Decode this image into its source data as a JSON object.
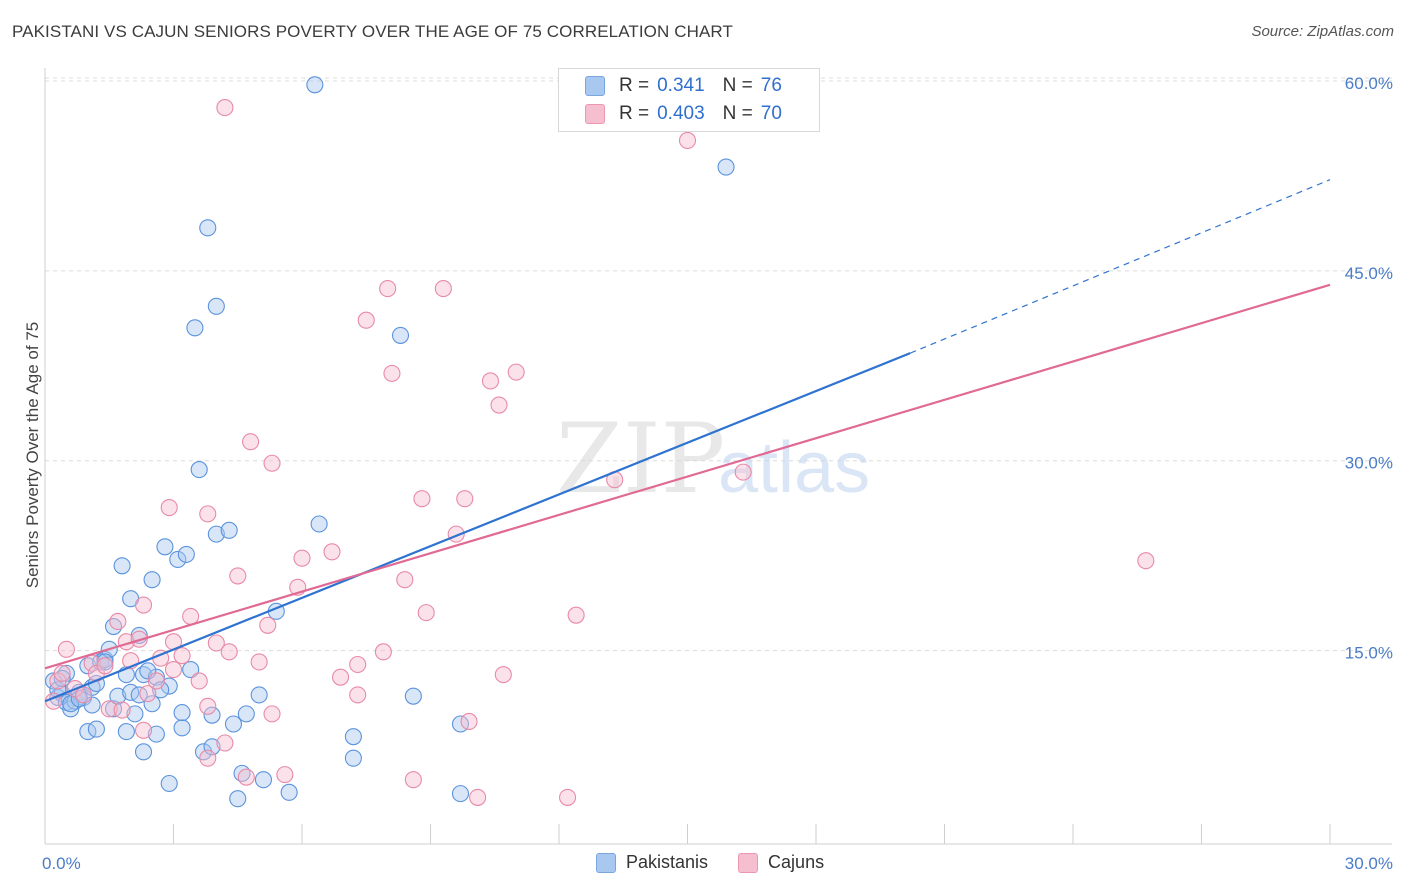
{
  "header": {
    "title": "PAKISTANI VS CAJUN SENIORS POVERTY OVER THE AGE OF 75 CORRELATION CHART",
    "source": "Source: ZipAtlas.com"
  },
  "watermark": {
    "zip": "ZIP",
    "atlas": "atlas"
  },
  "legend": {
    "rows": [
      {
        "r_label": "R =",
        "r_value": "0.341",
        "n_label": "N =",
        "n_value": "76",
        "color": "#a9c8f0"
      },
      {
        "r_label": "R =",
        "r_value": "0.403",
        "n_label": "N =",
        "n_value": "70",
        "color": "#f6bfd0"
      }
    ]
  },
  "bottom_legend": {
    "items": [
      "Pakistanis",
      "Cajuns"
    ]
  },
  "chart_data": {
    "type": "scatter",
    "title": "PAKISTANI VS CAJUN SENIORS POVERTY OVER THE AGE OF 75 CORRELATION CHART",
    "ylabel": "Seniors Poverty Over the Age of 75",
    "xlim": [
      0,
      30
    ],
    "ylim": [
      1.3,
      61.5
    ],
    "x_tick_labels": [
      "0.0%",
      "30.0%"
    ],
    "y_tick_labels": [
      "15.0%",
      "30.0%",
      "45.0%",
      "60.0%"
    ],
    "y_ticks": [
      15,
      30,
      45,
      60
    ],
    "grid": true,
    "legend_position": "top-center",
    "series": [
      {
        "name": "Pakistanis",
        "color": "#5b93dd",
        "fill": "#a9c8f0",
        "line_color": "#2f73d0",
        "r": 0.341,
        "n": 76,
        "trend": {
          "x0": 0,
          "y0": 11.0,
          "x1": 20.2,
          "y1": 38.5,
          "dash_x1": 30,
          "dash_y1": 52.2
        },
        "points": [
          [
            0.2,
            12.6
          ],
          [
            0.3,
            11.3
          ],
          [
            0.4,
            11.6
          ],
          [
            0.5,
            10.9
          ],
          [
            0.6,
            10.4
          ],
          [
            0.7,
            11.0
          ],
          [
            0.8,
            11.7
          ],
          [
            0.5,
            13.2
          ],
          [
            0.9,
            11.3
          ],
          [
            1.0,
            13.8
          ],
          [
            1.1,
            12.1
          ],
          [
            1.0,
            8.6
          ],
          [
            1.2,
            8.8
          ],
          [
            1.3,
            14.1
          ],
          [
            1.4,
            14.3
          ],
          [
            1.6,
            10.4
          ],
          [
            1.5,
            15.1
          ],
          [
            1.6,
            16.9
          ],
          [
            1.7,
            11.4
          ],
          [
            1.8,
            21.7
          ],
          [
            1.9,
            13.1
          ],
          [
            1.9,
            8.6
          ],
          [
            2.0,
            11.7
          ],
          [
            2.0,
            19.1
          ],
          [
            2.1,
            10.0
          ],
          [
            2.2,
            11.5
          ],
          [
            2.2,
            16.2
          ],
          [
            2.3,
            13.1
          ],
          [
            2.3,
            7.0
          ],
          [
            2.5,
            20.6
          ],
          [
            2.5,
            10.8
          ],
          [
            2.6,
            8.4
          ],
          [
            2.6,
            12.9
          ],
          [
            2.8,
            23.2
          ],
          [
            2.9,
            12.2
          ],
          [
            3.1,
            22.2
          ],
          [
            3.2,
            8.9
          ],
          [
            3.2,
            10.1
          ],
          [
            3.3,
            22.6
          ],
          [
            3.5,
            40.5
          ],
          [
            3.6,
            29.3
          ],
          [
            3.7,
            7.0
          ],
          [
            3.8,
            48.4
          ],
          [
            3.9,
            7.4
          ],
          [
            3.9,
            9.9
          ],
          [
            4.0,
            42.2
          ],
          [
            4.0,
            24.2
          ],
          [
            4.3,
            24.5
          ],
          [
            4.4,
            9.2
          ],
          [
            4.6,
            5.3
          ],
          [
            4.7,
            10.0
          ],
          [
            5.0,
            11.5
          ],
          [
            5.1,
            4.8
          ],
          [
            5.4,
            18.1
          ],
          [
            5.7,
            3.8
          ],
          [
            6.3,
            59.7
          ],
          [
            6.4,
            25.0
          ],
          [
            7.2,
            6.5
          ],
          [
            7.2,
            8.2
          ],
          [
            8.3,
            39.9
          ],
          [
            8.6,
            11.4
          ],
          [
            9.7,
            9.2
          ],
          [
            9.7,
            3.7
          ],
          [
            15.9,
            53.2
          ],
          [
            0.3,
            11.9
          ],
          [
            0.4,
            12.8
          ],
          [
            0.6,
            10.8
          ],
          [
            0.8,
            11.2
          ],
          [
            1.1,
            10.7
          ],
          [
            1.2,
            12.4
          ],
          [
            1.4,
            14.1
          ],
          [
            2.4,
            13.4
          ],
          [
            2.7,
            11.9
          ],
          [
            3.4,
            13.5
          ],
          [
            4.5,
            3.3
          ],
          [
            2.9,
            4.5
          ]
        ]
      },
      {
        "name": "Cajuns",
        "color": "#e88aa7",
        "fill": "#f6bfd0",
        "line_color": "#e06a94",
        "r": 0.403,
        "n": 70,
        "trend": {
          "x0": 0,
          "y0": 13.6,
          "x1": 30,
          "y1": 43.9
        },
        "points": [
          [
            0.2,
            11.0
          ],
          [
            0.3,
            12.6
          ],
          [
            0.4,
            13.2
          ],
          [
            0.5,
            15.1
          ],
          [
            0.7,
            12.0
          ],
          [
            0.9,
            11.5
          ],
          [
            1.1,
            14.0
          ],
          [
            1.2,
            13.2
          ],
          [
            1.4,
            13.8
          ],
          [
            1.5,
            10.4
          ],
          [
            1.7,
            17.3
          ],
          [
            1.9,
            15.7
          ],
          [
            2.0,
            14.2
          ],
          [
            2.2,
            15.9
          ],
          [
            2.3,
            18.6
          ],
          [
            2.3,
            8.7
          ],
          [
            2.4,
            11.6
          ],
          [
            2.6,
            12.6
          ],
          [
            2.7,
            14.4
          ],
          [
            2.9,
            26.3
          ],
          [
            3.0,
            13.5
          ],
          [
            3.0,
            15.7
          ],
          [
            3.2,
            14.6
          ],
          [
            3.4,
            17.7
          ],
          [
            3.6,
            12.6
          ],
          [
            3.8,
            6.5
          ],
          [
            3.8,
            25.8
          ],
          [
            3.8,
            10.6
          ],
          [
            4.0,
            15.6
          ],
          [
            4.2,
            7.7
          ],
          [
            4.3,
            14.9
          ],
          [
            4.5,
            20.9
          ],
          [
            4.7,
            5.0
          ],
          [
            4.8,
            31.5
          ],
          [
            5.0,
            14.1
          ],
          [
            5.2,
            17.0
          ],
          [
            5.3,
            10.0
          ],
          [
            5.3,
            29.8
          ],
          [
            5.6,
            5.2
          ],
          [
            5.9,
            20.0
          ],
          [
            6.0,
            22.3
          ],
          [
            6.7,
            22.8
          ],
          [
            6.9,
            12.9
          ],
          [
            7.3,
            11.5
          ],
          [
            7.3,
            13.9
          ],
          [
            7.5,
            41.1
          ],
          [
            7.9,
            14.9
          ],
          [
            8.0,
            43.6
          ],
          [
            8.1,
            36.9
          ],
          [
            8.4,
            20.6
          ],
          [
            8.6,
            4.8
          ],
          [
            8.8,
            27.0
          ],
          [
            8.9,
            18.0
          ],
          [
            9.3,
            43.6
          ],
          [
            9.6,
            24.2
          ],
          [
            9.8,
            27.0
          ],
          [
            9.9,
            9.4
          ],
          [
            10.1,
            3.4
          ],
          [
            10.4,
            36.3
          ],
          [
            10.6,
            34.4
          ],
          [
            10.7,
            13.1
          ],
          [
            11.0,
            37.0
          ],
          [
            12.2,
            3.4
          ],
          [
            12.4,
            17.8
          ],
          [
            13.3,
            28.5
          ],
          [
            15.0,
            55.3
          ],
          [
            16.3,
            29.1
          ],
          [
            25.7,
            22.1
          ],
          [
            4.2,
            57.9
          ],
          [
            1.8,
            10.3
          ]
        ]
      }
    ]
  }
}
